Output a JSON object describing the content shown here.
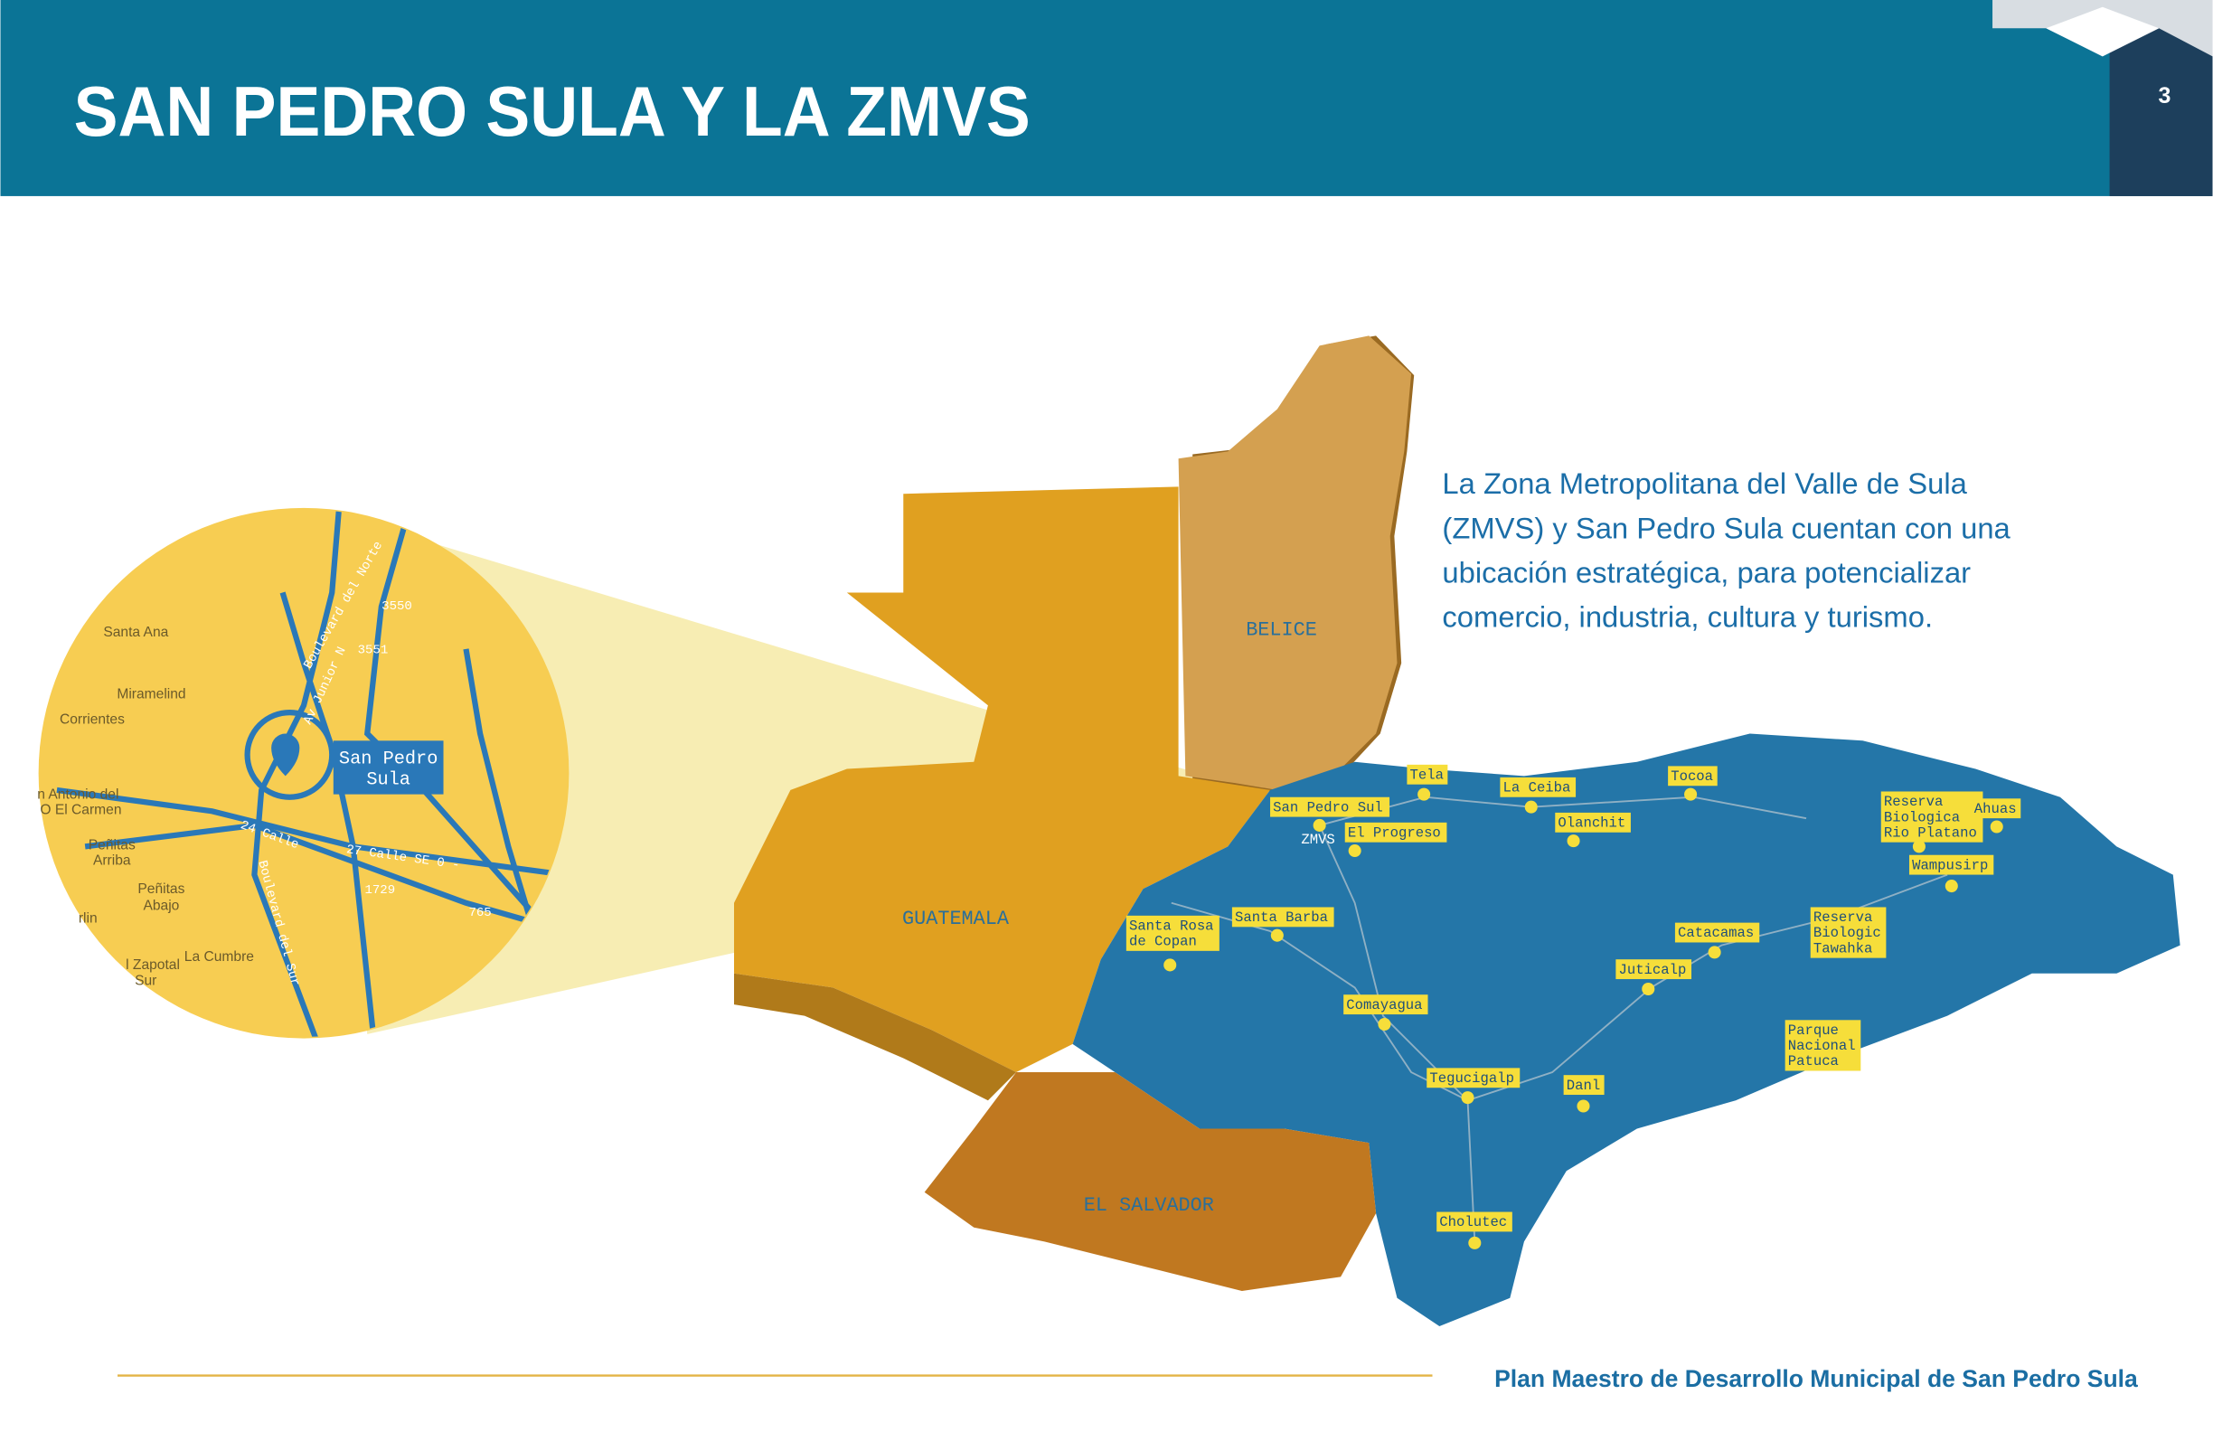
{
  "header": {
    "title": "SAN PEDRO SULA Y LA ZMVS",
    "page_number": "3"
  },
  "body": {
    "lines": [
      "La Zona Metropolitana del Valle de Sula",
      "(ZMVS) y San Pedro Sula cuentan con una",
      "ubicación estratégica, para potencializar",
      "comercio, industria, cultura y turismo."
    ]
  },
  "map": {
    "countries": [
      "BELICE",
      "GUATEMALA",
      "EL SALVADOR"
    ],
    "cities": [
      [
        "Tela"
      ],
      [
        "La Ceiba"
      ],
      [
        "Tocoa"
      ],
      [
        "San Pedro Sul"
      ],
      [
        "ZMVS"
      ],
      [
        "El Progreso"
      ],
      [
        "Olanchit"
      ],
      [
        "Reserva",
        "Biologica",
        "Rio Platano"
      ],
      [
        "Ahuas"
      ],
      [
        "Wampusirp"
      ],
      [
        "Santa Rosa",
        "de Copan"
      ],
      [
        "Santa Barba"
      ],
      [
        "Catacamas"
      ],
      [
        "Reserva",
        "Biologic",
        "Tawahka"
      ],
      [
        "Juticalp"
      ],
      [
        "Comayagua"
      ],
      [
        "Parque",
        "Nacional",
        "Patuca"
      ],
      [
        "Tegucigalp"
      ],
      [
        "Danl"
      ],
      [
        "Cholutec"
      ]
    ]
  },
  "inset": {
    "center_label": [
      "San Pedro",
      "Sula"
    ],
    "labels": [
      "Santa Ana",
      "Miramelind",
      "Corrientes",
      "n Antonio del",
      "O El Carmen",
      "Peñitas",
      "Arriba",
      "Peñitas",
      "Abajo",
      "rlin",
      "l Zapotal",
      "Sur",
      "La Cumbre"
    ],
    "roads": [
      "3550",
      "3551",
      "24 Calle",
      "27 Calle SE 0 -",
      "1729",
      "765",
      "Boulevard del Norte",
      "Av Junior N",
      "Boulevard del Sur"
    ]
  },
  "footer": {
    "text": "Plan Maestro de Desarrollo Municipal de San Pedro Sula"
  }
}
